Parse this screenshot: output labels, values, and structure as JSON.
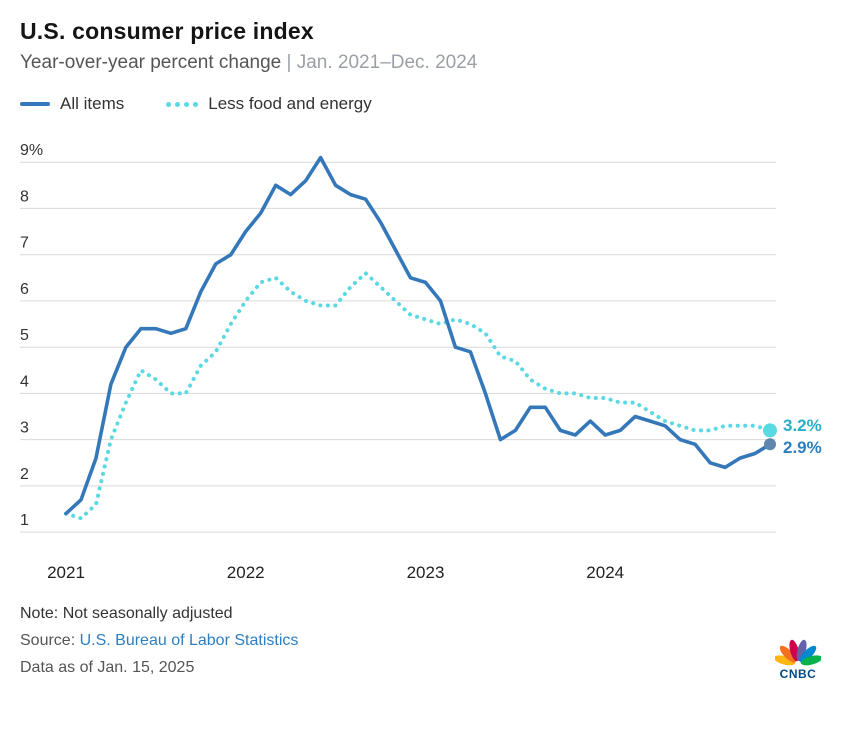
{
  "header": {
    "title": "U.S. consumer price index",
    "subtitle": "Year-over-year percent change",
    "subtitle_range": "| Jan. 2021–Dec. 2024"
  },
  "chart_data": {
    "type": "line",
    "title": "U.S. consumer price index",
    "subtitle": "Year-over-year percent change",
    "x_description": "Monthly, Jan. 2021 through Dec. 2024 (48 points)",
    "x_tick_labels": [
      "2021",
      "2022",
      "2023",
      "2024"
    ],
    "x_tick_month_indices": [
      0,
      12,
      24,
      36
    ],
    "y_ticks": [
      9,
      8,
      7,
      6,
      5,
      4,
      3,
      2,
      1
    ],
    "y_tick_labels": [
      "9%",
      "8",
      "7",
      "6",
      "5",
      "4",
      "3",
      "2",
      "1"
    ],
    "ylim": [
      0.7,
      9.35
    ],
    "grid": "horizontal",
    "legend_position": "top-left",
    "series": [
      {
        "name": "All items",
        "style": "solid",
        "color": "#3578b9",
        "dot_color": "#5f87ad",
        "end_label": "2.9%",
        "end_label_color": "#2e7fc1",
        "values": [
          1.4,
          1.7,
          2.6,
          4.2,
          5.0,
          5.4,
          5.4,
          5.3,
          5.4,
          6.2,
          6.8,
          7.0,
          7.5,
          7.9,
          8.5,
          8.3,
          8.6,
          9.1,
          8.5,
          8.3,
          8.2,
          7.7,
          7.1,
          6.5,
          6.4,
          6.0,
          5.0,
          4.9,
          4.0,
          3.0,
          3.2,
          3.7,
          3.7,
          3.2,
          3.1,
          3.4,
          3.1,
          3.2,
          3.5,
          3.4,
          3.3,
          3.0,
          2.9,
          2.5,
          2.4,
          2.6,
          2.7,
          2.9
        ]
      },
      {
        "name": "Less food and energy",
        "style": "dotted",
        "color": "#5ad9e2",
        "dot_color": "#5ad9e2",
        "end_label": "3.2%",
        "end_label_color": "#29aec6",
        "values": [
          1.4,
          1.3,
          1.6,
          3.0,
          3.8,
          4.5,
          4.3,
          4.0,
          4.0,
          4.6,
          4.9,
          5.5,
          6.0,
          6.4,
          6.5,
          6.2,
          6.0,
          5.9,
          5.9,
          6.3,
          6.6,
          6.3,
          6.0,
          5.7,
          5.6,
          5.5,
          5.6,
          5.5,
          5.3,
          4.8,
          4.7,
          4.3,
          4.1,
          4.0,
          4.0,
          3.9,
          3.9,
          3.8,
          3.8,
          3.6,
          3.4,
          3.3,
          3.2,
          3.2,
          3.3,
          3.3,
          3.3,
          3.2
        ]
      }
    ]
  },
  "footer": {
    "note": "Note: Not seasonally adjusted",
    "source_prefix": "Source: ",
    "source_link": "U.S. Bureau of Labor Statistics",
    "data_as_of": "Data as of Jan. 15, 2025",
    "logo_text": "CNBC"
  }
}
